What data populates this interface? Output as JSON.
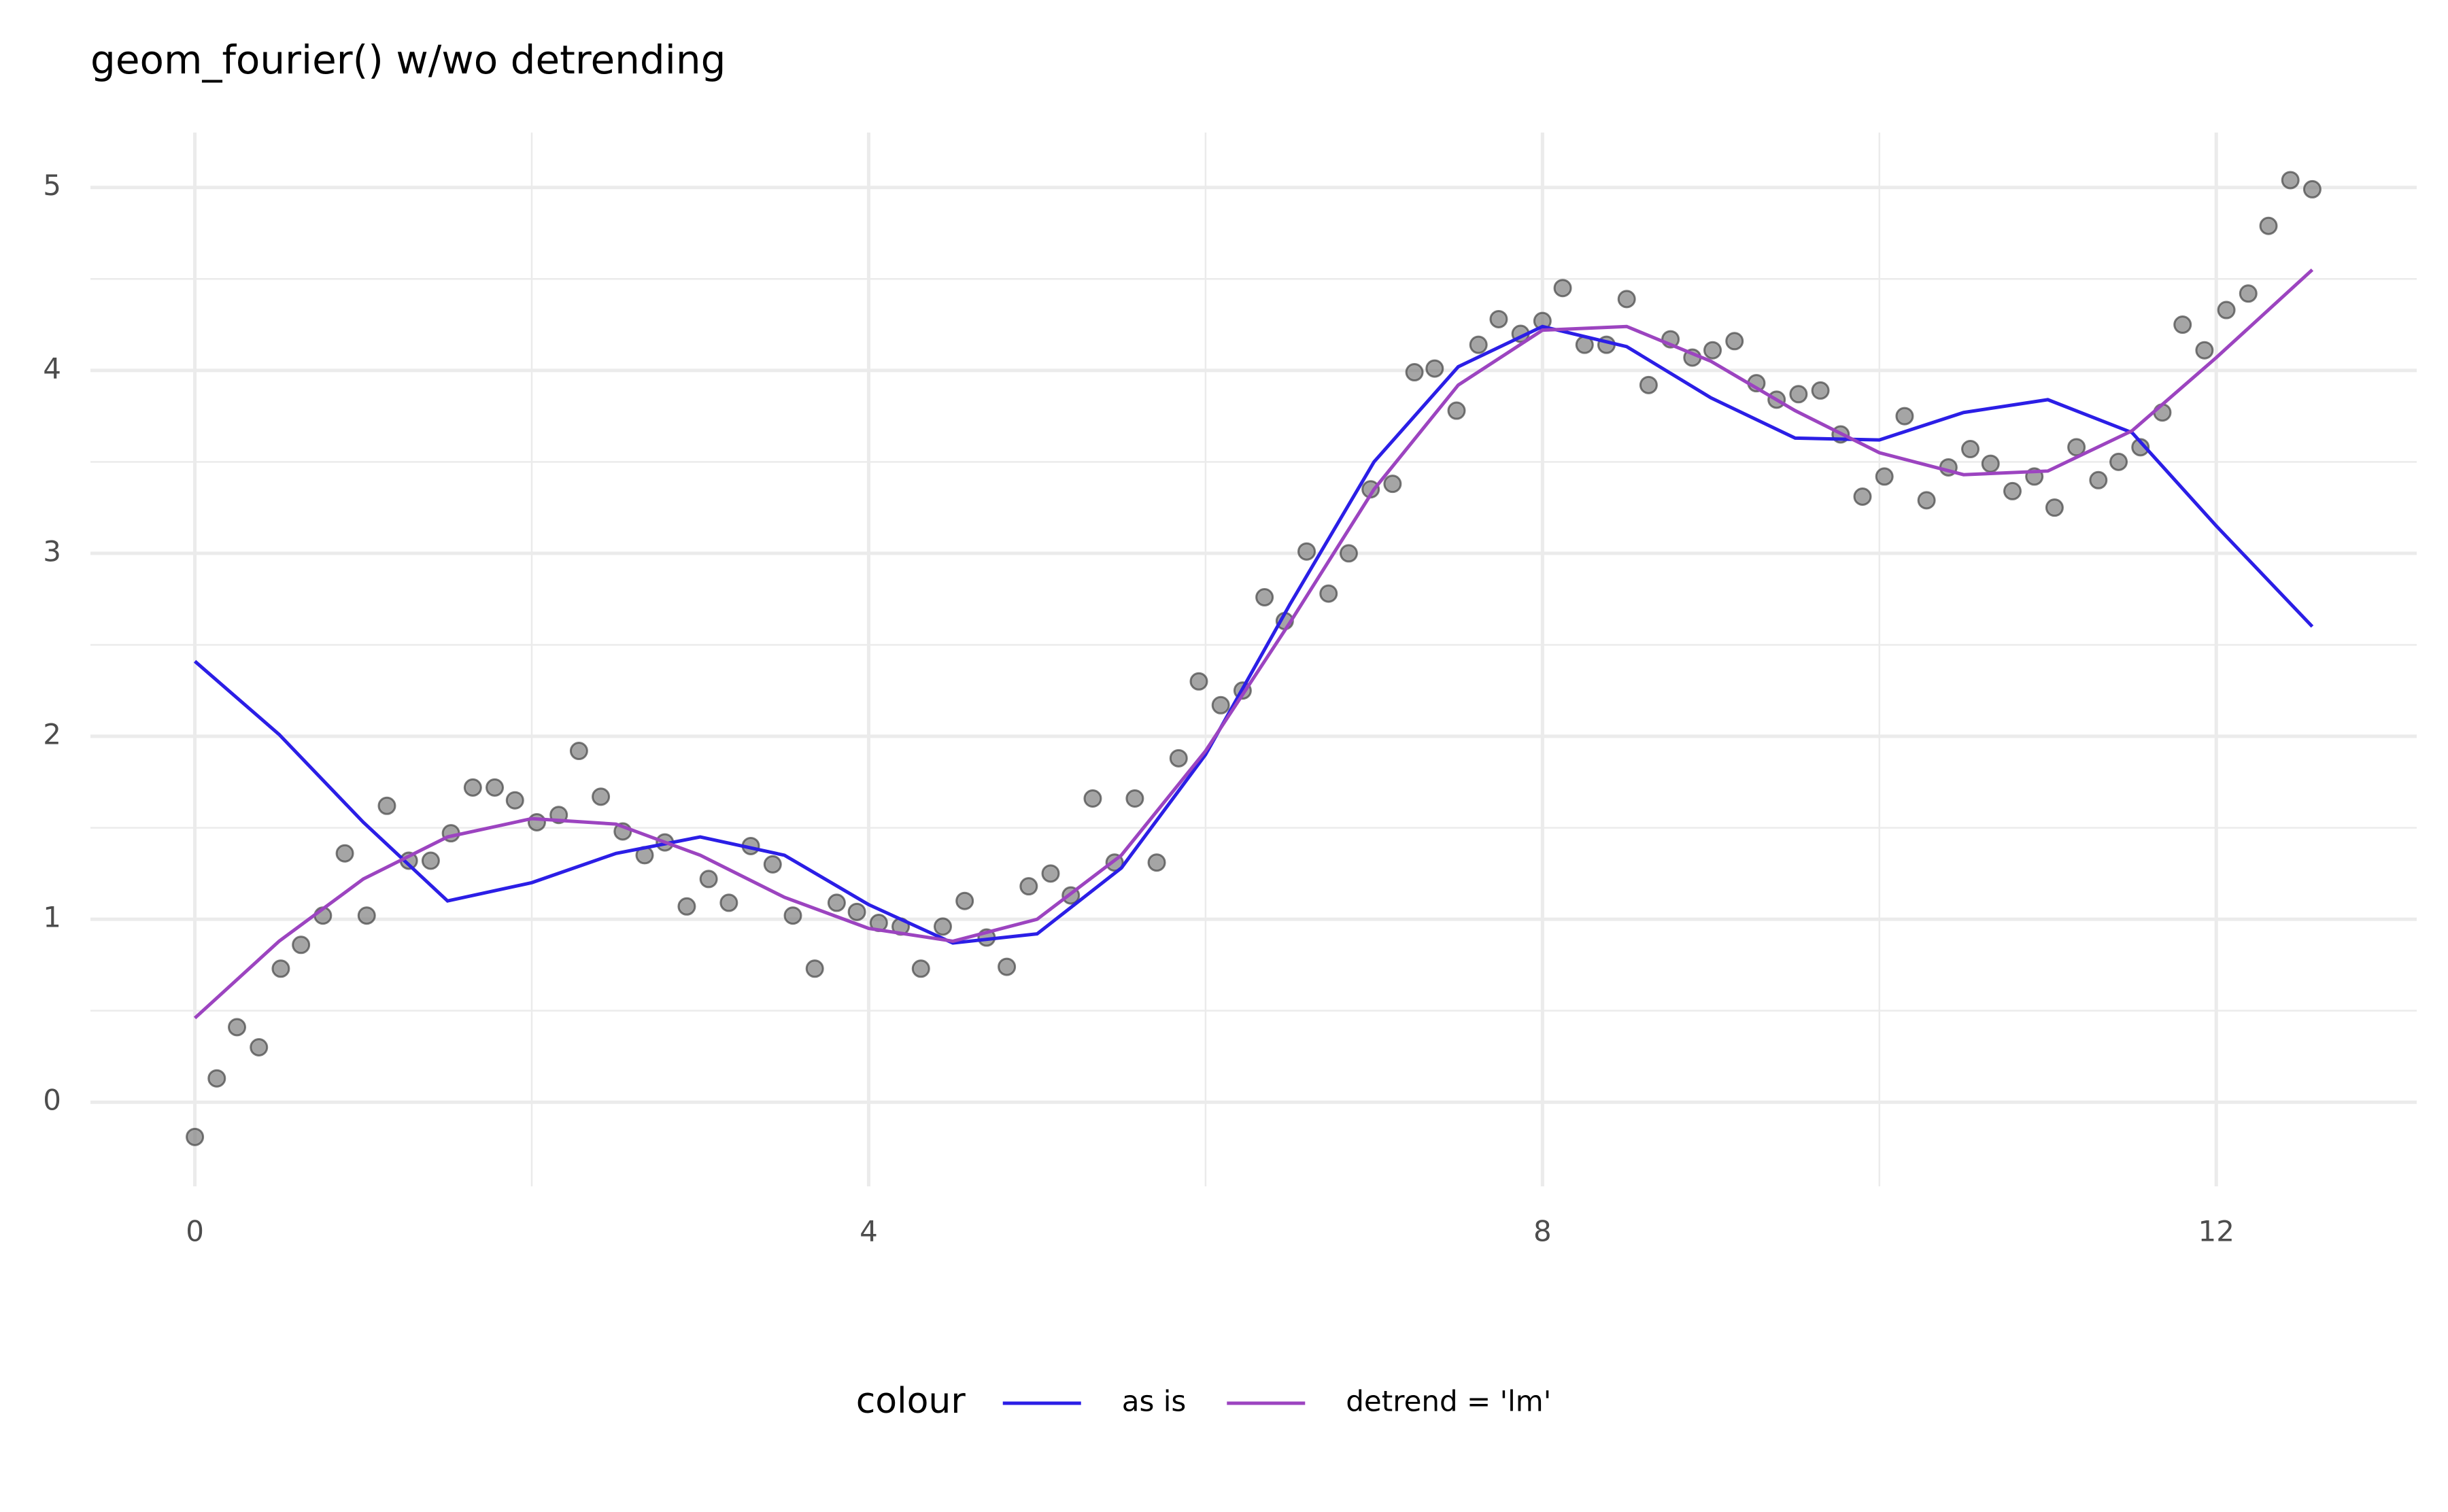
{
  "chart_data": {
    "type": "line",
    "title": "geom_fourier() w/wo detrending",
    "legend_title": "colour",
    "legend_position": "bottom",
    "grid": true,
    "xlim": [
      -0.62,
      13.19
    ],
    "ylim": [
      -0.46,
      5.3
    ],
    "xticks": [
      0,
      4,
      8,
      12
    ],
    "yticks": [
      0,
      1,
      2,
      3,
      4,
      5
    ],
    "xminor": [
      2,
      6,
      10
    ],
    "yminor": [
      0.5,
      1.5,
      2.5,
      3.5,
      4.5
    ],
    "series": [
      {
        "type": "scatter",
        "color": "#7f7f7f",
        "x": [
          0,
          0.13,
          0.25,
          0.38,
          0.51,
          0.63,
          0.76,
          0.89,
          1.02,
          1.14,
          1.27,
          1.4,
          1.52,
          1.65,
          1.78,
          1.9,
          2.03,
          2.16,
          2.28,
          2.41,
          2.54,
          2.67,
          2.79,
          2.92,
          3.05,
          3.17,
          3.3,
          3.43,
          3.55,
          3.68,
          3.81,
          3.93,
          4.06,
          4.19,
          4.31,
          4.44,
          4.57,
          4.7,
          4.82,
          4.95,
          5.08,
          5.2,
          5.33,
          5.46,
          5.58,
          5.71,
          5.84,
          5.96,
          6.09,
          6.22,
          6.35,
          6.47,
          6.6,
          6.73,
          6.85,
          6.98,
          7.11,
          7.24,
          7.36,
          7.49,
          7.62,
          7.74,
          7.87,
          8.0,
          8.12,
          8.25,
          8.38,
          8.5,
          8.63,
          8.76,
          8.89,
          9.01,
          9.14,
          9.27,
          9.39,
          9.52,
          9.65,
          9.77,
          9.9,
          10.03,
          10.15,
          10.28,
          10.41,
          10.54,
          10.66,
          10.79,
          10.92,
          11.04,
          11.17,
          11.3,
          11.42,
          11.55,
          11.68,
          11.8,
          11.93,
          12.06,
          12.19,
          12.31,
          12.44,
          12.57
        ],
        "values": [
          -0.19,
          0.13,
          0.41,
          0.3,
          0.73,
          0.86,
          1.02,
          1.36,
          1.02,
          1.62,
          1.32,
          1.32,
          1.47,
          1.72,
          1.72,
          1.65,
          1.53,
          1.57,
          1.92,
          1.67,
          1.48,
          1.35,
          1.42,
          1.07,
          1.22,
          1.09,
          1.4,
          1.3,
          1.02,
          0.73,
          1.09,
          1.04,
          0.98,
          0.96,
          0.73,
          0.96,
          1.1,
          0.9,
          0.74,
          1.18,
          1.25,
          1.13,
          1.66,
          1.31,
          1.66,
          1.31,
          1.88,
          2.3,
          2.17,
          2.25,
          2.76,
          2.63,
          3.01,
          2.78,
          3.0,
          3.35,
          3.38,
          3.99,
          4.01,
          3.78,
          4.14,
          4.28,
          4.2,
          4.27,
          4.45,
          4.14,
          4.14,
          4.39,
          3.92,
          4.17,
          4.07,
          4.11,
          4.16,
          3.93,
          3.84,
          3.87,
          3.89,
          3.65,
          3.31,
          3.42,
          3.75,
          3.29,
          3.47,
          3.57,
          3.49,
          3.34,
          3.42,
          3.25,
          3.58,
          3.4,
          3.5,
          3.58,
          3.77,
          4.25,
          4.11,
          4.33,
          4.42,
          4.79,
          5.04,
          4.99
        ]
      },
      {
        "type": "line",
        "name": "as is",
        "color": "#2b1ee6",
        "x": [
          0,
          0.5,
          1,
          1.5,
          2,
          2.5,
          3,
          3.5,
          4,
          4.5,
          5,
          5.5,
          6,
          6.5,
          7,
          7.5,
          8,
          8.5,
          9,
          9.5,
          10,
          10.5,
          11,
          11.5,
          12,
          12.57
        ],
        "values": [
          2.41,
          2.01,
          1.53,
          1.1,
          1.2,
          1.36,
          1.45,
          1.35,
          1.08,
          0.87,
          0.92,
          1.28,
          1.9,
          2.72,
          3.5,
          4.02,
          4.24,
          4.13,
          3.85,
          3.63,
          3.62,
          3.77,
          3.84,
          3.66,
          3.15,
          2.6
        ]
      },
      {
        "type": "line",
        "name": "detrend = 'lm'",
        "color": "#9c44c0",
        "x": [
          0,
          0.5,
          1,
          1.5,
          2,
          2.5,
          3,
          3.5,
          4,
          4.5,
          5,
          5.5,
          6,
          6.5,
          7,
          7.5,
          8,
          8.5,
          9,
          9.5,
          10,
          10.5,
          11,
          11.5,
          12,
          12.57
        ],
        "values": [
          0.46,
          0.88,
          1.22,
          1.45,
          1.55,
          1.52,
          1.35,
          1.12,
          0.95,
          0.88,
          1.0,
          1.35,
          1.92,
          2.62,
          3.35,
          3.92,
          4.22,
          4.24,
          4.05,
          3.78,
          3.55,
          3.43,
          3.45,
          3.67,
          4.07,
          4.55
        ]
      }
    ]
  }
}
